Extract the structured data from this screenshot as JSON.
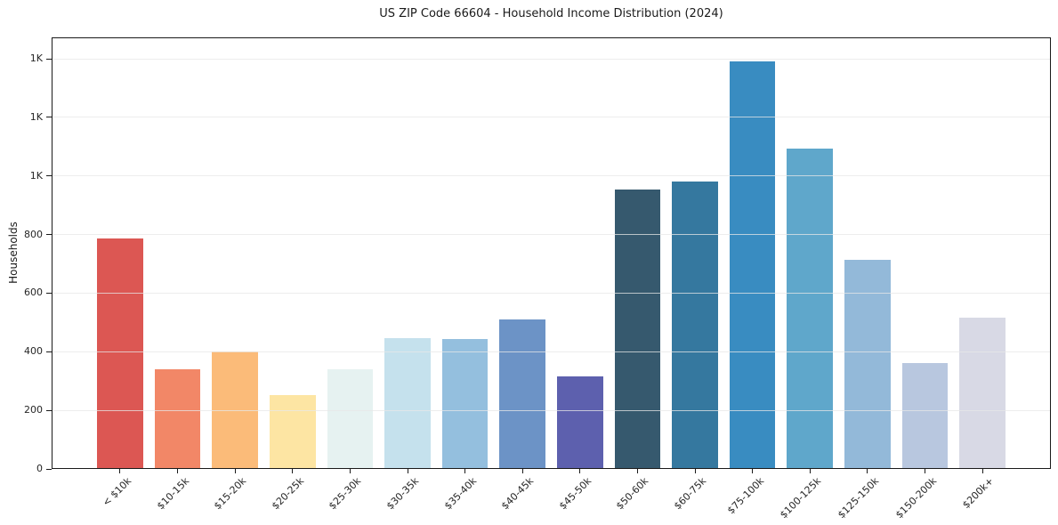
{
  "chart_data": {
    "type": "bar",
    "title": "US ZIP Code 66604 - Household Income Distribution (2024)",
    "xlabel": "",
    "ylabel": "Households",
    "categories": [
      "< $10k",
      "$10-15k",
      "$15-20k",
      "$20-25k",
      "$25-30k",
      "$30-35k",
      "$35-40k",
      "$40-45k",
      "$45-50k",
      "$50-60k",
      "$60-75k",
      "$75-100k",
      "$100-125k",
      "$125-150k",
      "$150-200k",
      "$200k+"
    ],
    "values": [
      786,
      340,
      400,
      252,
      340,
      448,
      445,
      510,
      315,
      954,
      980,
      1392,
      1093,
      713,
      362,
      515
    ],
    "bar_colors": [
      "#DC5753",
      "#F28767",
      "#FBBB79",
      "#FDE5A3",
      "#E6F2F1",
      "#C5E1ED",
      "#94BFDE",
      "#6C93C6",
      "#5D60AE",
      "#36596E",
      "#35789F",
      "#398CC1",
      "#5FA7CB",
      "#93B9D9",
      "#B8C7DF",
      "#D8D9E5"
    ],
    "ylim": [
      0,
      1473
    ],
    "yticks": {
      "values": [
        0,
        200,
        400,
        600,
        800,
        1000,
        1200,
        1400
      ],
      "labels": [
        "0",
        "200",
        "400",
        "600",
        "800",
        "1K",
        "1K",
        "1K"
      ]
    },
    "grid": "horizontal",
    "legend": "none",
    "styling": {
      "background": "#ffffff",
      "grid_color": "#e7e7e7",
      "spine_color": "#1a1a1a",
      "text_color": "#262626"
    }
  }
}
